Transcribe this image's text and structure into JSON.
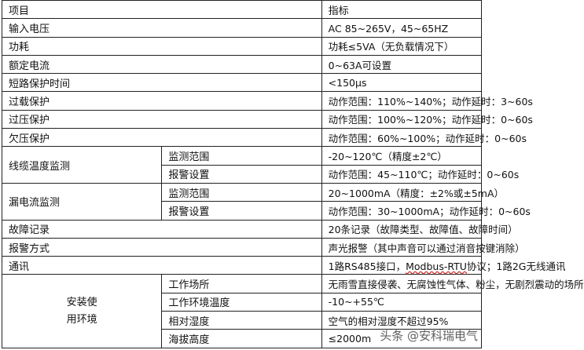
{
  "header": {
    "item": "项目",
    "spec": "指标"
  },
  "rows": [
    {
      "label": "输入电压",
      "value": "AC 85~265V，45~65HZ"
    },
    {
      "label": "功耗",
      "value": "功耗≤5VA（无负载情况下）"
    },
    {
      "label": "额定电流",
      "value": "0~63A可设置"
    },
    {
      "label": "短路保护时间",
      "value": "<150μs"
    },
    {
      "label": "过载保护",
      "value": "动作范围：110%~140%；动作延时：3~60s"
    },
    {
      "label": "过压保护",
      "value": "动作范围：100%~120%；动作延时：0~60s"
    },
    {
      "label": "欠压保护",
      "value": "动作范围：60%~100%；动作延时：0~60s"
    }
  ],
  "cable_temp": {
    "label": "线缆温度监测",
    "sub": [
      {
        "label": "监测范围",
        "value": "-20~120℃（精度±2℃）"
      },
      {
        "label": "报警设置",
        "value": "动作范围：45~110℃；动作延时：0~60s"
      }
    ]
  },
  "leakage": {
    "label": "漏电流监测",
    "sub": [
      {
        "label": "监测范围",
        "value": "20~1000mA（精度：±2%或±5mA）"
      },
      {
        "label": "报警设置",
        "value": "动作范围：30~1000mA；动作延时：0~60s"
      }
    ]
  },
  "rows2": [
    {
      "label": "故障记录",
      "value": "20条记录（故障类型、故障值、故障时间）"
    },
    {
      "label": "报警方式",
      "value": "声光报警（其中声音可以通过消音按键消除）"
    }
  ],
  "comm": {
    "label": "通讯",
    "value_a": "1路RS485接口，",
    "value_b": "Modbus-RTU",
    "value_c": "协议；1路2G无线通讯"
  },
  "env": {
    "label_1": "安装使",
    "label_2": "用环境",
    "sub": [
      {
        "label": "工作场所",
        "value": "无雨雪直接侵袭、无腐蚀性气体、粉尘，无剧烈震动的场所"
      },
      {
        "label": "工作环境温度",
        "value": "-10~+55℃"
      },
      {
        "label": "相对湿度",
        "value": "空气的相对湿度不超过95%"
      },
      {
        "label": "海拔高度",
        "value": "≤2000m"
      }
    ]
  },
  "watermark": "头条 @安科瑞电气"
}
